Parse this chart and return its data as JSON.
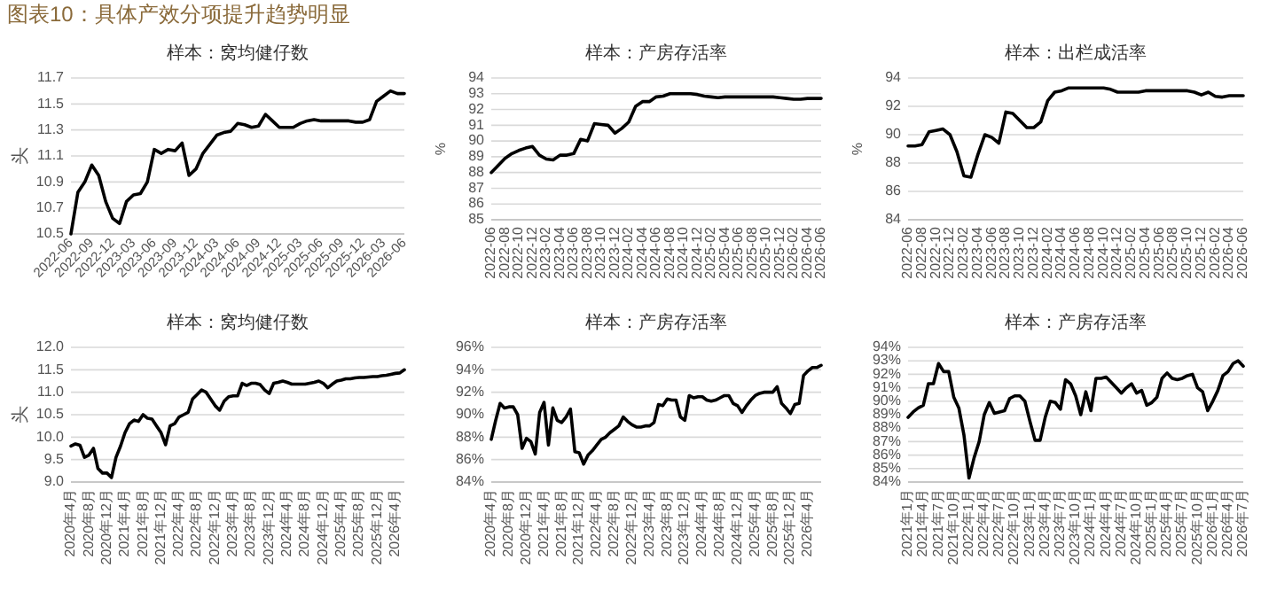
{
  "chart_data": [
    {
      "type": "line",
      "title": "样本：窝均健仔数",
      "ylabel": "头",
      "annotations": [
        "图表10：具体产效分项提升趋势明显"
      ],
      "grid": "y",
      "ylim": [
        10.5,
        11.7
      ],
      "yticks": [
        10.5,
        10.7,
        10.9,
        11.1,
        11.3,
        11.5,
        11.7
      ],
      "xlim": [
        "2022-06",
        "2026-06"
      ],
      "xticks": [
        {
          "value": "2022-06",
          "label": "2022-06"
        },
        {
          "value": "2022-09",
          "label": "2022-09"
        },
        {
          "value": "2022-12",
          "label": "2022-12"
        },
        {
          "value": "2023-03",
          "label": "2023-03"
        },
        {
          "value": "2023-06",
          "label": "2023-06"
        },
        {
          "value": "2023-09",
          "label": "2023-09"
        },
        {
          "value": "2023-12",
          "label": "2023-12"
        },
        {
          "value": "2024-03",
          "label": "2024-03"
        },
        {
          "value": "2024-06",
          "label": "2024-06"
        },
        {
          "value": "2024-09",
          "label": "2024-09"
        },
        {
          "value": "2024-12",
          "label": "2024-12"
        },
        {
          "value": "2025-03",
          "label": "2025-03"
        },
        {
          "value": "2025-06",
          "label": "2025-06"
        },
        {
          "value": "2025-09",
          "label": "2025-09"
        },
        {
          "value": "2025-12",
          "label": "2025-12"
        },
        {
          "value": "2026-03",
          "label": "2026-03"
        },
        {
          "value": "2026-06",
          "label": "2026-06"
        }
      ],
      "x": [
        "2022-06",
        "2022-07",
        "2022-08",
        "2022-09",
        "2022-10",
        "2022-11",
        "2022-12",
        "2023-01",
        "2023-02",
        "2023-03",
        "2023-04",
        "2023-05",
        "2023-06",
        "2023-07",
        "2023-08",
        "2023-09",
        "2023-10",
        "2023-11",
        "2023-12",
        "2024-01",
        "2024-02",
        "2024-03",
        "2024-04",
        "2024-05",
        "2024-06",
        "2024-07",
        "2024-08",
        "2024-09",
        "2024-10",
        "2024-11",
        "2024-12",
        "2025-01",
        "2025-02",
        "2025-03",
        "2025-04",
        "2025-05",
        "2025-06",
        "2025-07",
        "2025-08",
        "2025-09",
        "2025-10",
        "2025-11",
        "2025-12",
        "2026-01",
        "2026-02",
        "2026-03",
        "2026-04",
        "2026-05",
        "2026-06"
      ],
      "series": [
        {
          "color": "#000000",
          "values": [
            10.5,
            10.82,
            10.9,
            11.03,
            10.95,
            10.75,
            10.62,
            10.58,
            10.75,
            10.8,
            10.81,
            10.9,
            11.15,
            11.12,
            11.15,
            11.14,
            11.2,
            10.95,
            11.0,
            11.12,
            11.19,
            11.26,
            11.28,
            11.29,
            11.35,
            11.34,
            11.32,
            11.33,
            11.42,
            11.37,
            11.32,
            11.32,
            11.32,
            11.35,
            11.37,
            11.38,
            11.37,
            11.37,
            11.37,
            11.37,
            11.37,
            11.36,
            11.36,
            11.38,
            11.52,
            11.56,
            11.6,
            11.58,
            11.58
          ]
        }
      ]
    },
    {
      "type": "line",
      "title": "样本：产房存活率",
      "ylabel": "%",
      "grid": "y",
      "ylim": [
        85,
        94
      ],
      "yticks": [
        85,
        86,
        87,
        88,
        89,
        90,
        91,
        92,
        93,
        94
      ],
      "xlim": [
        "2022-06",
        "2026-06"
      ],
      "xticks": [
        {
          "value": "2022-06",
          "label": "2022-06"
        },
        {
          "value": "2022-08",
          "label": "2022-08"
        },
        {
          "value": "2022-10",
          "label": "2022-10"
        },
        {
          "value": "2022-12",
          "label": "2022-12"
        },
        {
          "value": "2023-02",
          "label": "2023-02"
        },
        {
          "value": "2023-04",
          "label": "2023-04"
        },
        {
          "value": "2023-06",
          "label": "2023-06"
        },
        {
          "value": "2023-08",
          "label": "2023-08"
        },
        {
          "value": "2023-10",
          "label": "2023-10"
        },
        {
          "value": "2023-12",
          "label": "2023-12"
        },
        {
          "value": "2024-02",
          "label": "2024-02"
        },
        {
          "value": "2024-04",
          "label": "2024-04"
        },
        {
          "value": "2024-06",
          "label": "2024-06"
        },
        {
          "value": "2024-08",
          "label": "2024-08"
        },
        {
          "value": "2024-10",
          "label": "2024-10"
        },
        {
          "value": "2024-12",
          "label": "2024-12"
        },
        {
          "value": "2025-02",
          "label": "2025-02"
        },
        {
          "value": "2025-04",
          "label": "2025-04"
        },
        {
          "value": "2025-06",
          "label": "2025-06"
        },
        {
          "value": "2025-08",
          "label": "2025-08"
        },
        {
          "value": "2025-10",
          "label": "2025-10"
        },
        {
          "value": "2025-12",
          "label": "2025-12"
        },
        {
          "value": "2026-02",
          "label": "2026-02"
        },
        {
          "value": "2026-04",
          "label": "2026-04"
        },
        {
          "value": "2026-06",
          "label": "2026-06"
        }
      ],
      "x": [
        "2022-06",
        "2022-07",
        "2022-08",
        "2022-09",
        "2022-10",
        "2022-11",
        "2022-12",
        "2023-01",
        "2023-02",
        "2023-03",
        "2023-04",
        "2023-05",
        "2023-06",
        "2023-07",
        "2023-08",
        "2023-09",
        "2023-10",
        "2023-11",
        "2023-12",
        "2024-01",
        "2024-02",
        "2024-03",
        "2024-04",
        "2024-05",
        "2024-06",
        "2024-07",
        "2024-08",
        "2024-09",
        "2024-10",
        "2024-11",
        "2024-12",
        "2025-01",
        "2025-02",
        "2025-03",
        "2025-04",
        "2025-05",
        "2025-06",
        "2025-07",
        "2025-08",
        "2025-09",
        "2025-10",
        "2025-11",
        "2025-12",
        "2026-01",
        "2026-02",
        "2026-03",
        "2026-04",
        "2026-05",
        "2026-06"
      ],
      "series": [
        {
          "color": "#000000",
          "values": [
            88.0,
            88.45,
            88.9,
            89.2,
            89.4,
            89.55,
            89.65,
            89.1,
            88.85,
            88.8,
            89.1,
            89.1,
            89.2,
            90.1,
            90.0,
            91.1,
            91.05,
            91.0,
            90.5,
            90.8,
            91.2,
            92.2,
            92.5,
            92.5,
            92.8,
            92.85,
            93.0,
            93.0,
            93.0,
            93.0,
            92.95,
            92.85,
            92.8,
            92.75,
            92.8,
            92.8,
            92.8,
            92.8,
            92.8,
            92.8,
            92.8,
            92.8,
            92.75,
            92.7,
            92.65,
            92.65,
            92.7,
            92.7,
            92.7
          ]
        }
      ]
    },
    {
      "type": "line",
      "title": "样本：出栏成活率",
      "ylabel": "%",
      "grid": "y",
      "ylim": [
        84,
        94
      ],
      "yticks": [
        84,
        86,
        88,
        90,
        92,
        94
      ],
      "xlim": [
        "2022-06",
        "2026-06"
      ],
      "xticks": [
        {
          "value": "2022-06",
          "label": "2022-06"
        },
        {
          "value": "2022-08",
          "label": "2022-08"
        },
        {
          "value": "2022-10",
          "label": "2022-10"
        },
        {
          "value": "2022-12",
          "label": "2022-12"
        },
        {
          "value": "2023-02",
          "label": "2023-02"
        },
        {
          "value": "2023-04",
          "label": "2023-04"
        },
        {
          "value": "2023-06",
          "label": "2023-06"
        },
        {
          "value": "2023-08",
          "label": "2023-08"
        },
        {
          "value": "2023-10",
          "label": "2023-10"
        },
        {
          "value": "2023-12",
          "label": "2023-12"
        },
        {
          "value": "2024-02",
          "label": "2024-02"
        },
        {
          "value": "2024-04",
          "label": "2024-04"
        },
        {
          "value": "2024-06",
          "label": "2024-06"
        },
        {
          "value": "2024-08",
          "label": "2024-08"
        },
        {
          "value": "2024-10",
          "label": "2024-10"
        },
        {
          "value": "2024-12",
          "label": "2024-12"
        },
        {
          "value": "2025-02",
          "label": "2025-02"
        },
        {
          "value": "2025-04",
          "label": "2025-04"
        },
        {
          "value": "2025-06",
          "label": "2025-06"
        },
        {
          "value": "2025-08",
          "label": "2025-08"
        },
        {
          "value": "2025-10",
          "label": "2025-10"
        },
        {
          "value": "2025-12",
          "label": "2025-12"
        },
        {
          "value": "2026-02",
          "label": "2026-02"
        },
        {
          "value": "2026-04",
          "label": "2026-04"
        },
        {
          "value": "2026-06",
          "label": "2026-06"
        }
      ],
      "x": [
        "2022-06",
        "2022-07",
        "2022-08",
        "2022-09",
        "2022-10",
        "2022-11",
        "2022-12",
        "2023-01",
        "2023-02",
        "2023-03",
        "2023-04",
        "2023-05",
        "2023-06",
        "2023-07",
        "2023-08",
        "2023-09",
        "2023-10",
        "2023-11",
        "2023-12",
        "2024-01",
        "2024-02",
        "2024-03",
        "2024-04",
        "2024-05",
        "2024-06",
        "2024-07",
        "2024-08",
        "2024-09",
        "2024-10",
        "2024-11",
        "2024-12",
        "2025-01",
        "2025-02",
        "2025-03",
        "2025-04",
        "2025-05",
        "2025-06",
        "2025-07",
        "2025-08",
        "2025-09",
        "2025-10",
        "2025-11",
        "2025-12",
        "2026-01",
        "2026-02",
        "2026-03",
        "2026-04",
        "2026-05",
        "2026-06"
      ],
      "series": [
        {
          "color": "#000000",
          "values": [
            89.2,
            89.2,
            89.3,
            90.2,
            90.3,
            90.4,
            90.0,
            88.8,
            87.1,
            87.0,
            88.6,
            90.0,
            89.8,
            89.4,
            91.6,
            91.5,
            91.0,
            90.5,
            90.5,
            90.9,
            92.4,
            93.0,
            93.1,
            93.3,
            93.3,
            93.3,
            93.3,
            93.3,
            93.3,
            93.2,
            93.0,
            93.0,
            93.0,
            93.0,
            93.1,
            93.1,
            93.1,
            93.1,
            93.1,
            93.1,
            93.1,
            93.0,
            92.8,
            93.0,
            92.7,
            92.65,
            92.75,
            92.75,
            92.75
          ]
        }
      ]
    },
    {
      "type": "line",
      "title": "样本：窝均健仔数",
      "ylabel": "头",
      "grid": "y",
      "ylim": [
        9,
        12
      ],
      "yticks": [
        {
          "value": 9,
          "label": "9.0"
        },
        9.5,
        {
          "value": 10,
          "label": "10.0"
        },
        10.5,
        {
          "value": 11,
          "label": "11.0"
        },
        11.5,
        {
          "value": 12,
          "label": "12.0"
        }
      ],
      "xlim": [
        "2020-04",
        "2026-06"
      ],
      "xticks": [
        {
          "value": "2020-04",
          "label": "2020年4月"
        },
        {
          "value": "2020-08",
          "label": "2020年8月"
        },
        {
          "value": "2020-12",
          "label": "2020年12月"
        },
        {
          "value": "2021-04",
          "label": "2021年4月"
        },
        {
          "value": "2021-08",
          "label": "2021年8月"
        },
        {
          "value": "2021-12",
          "label": "2021年12月"
        },
        {
          "value": "2022-04",
          "label": "2022年4月"
        },
        {
          "value": "2022-08",
          "label": "2022年8月"
        },
        {
          "value": "2022-12",
          "label": "2022年12月"
        },
        {
          "value": "2023-04",
          "label": "2023年4月"
        },
        {
          "value": "2023-08",
          "label": "2023年8月"
        },
        {
          "value": "2023-12",
          "label": "2023年12月"
        },
        {
          "value": "2024-04",
          "label": "2024年4月"
        },
        {
          "value": "2024-08",
          "label": "2024年8月"
        },
        {
          "value": "2024-12",
          "label": "2024年12月"
        },
        {
          "value": "2025-04",
          "label": "2025年4月"
        },
        {
          "value": "2025-08",
          "label": "2025年8月"
        },
        {
          "value": "2025-12",
          "label": "2025年12月"
        },
        {
          "value": "2026-04",
          "label": "2026年4月"
        }
      ],
      "x": [
        "2020-04",
        "2020-05",
        "2020-06",
        "2020-07",
        "2020-08",
        "2020-09",
        "2020-10",
        "2020-11",
        "2020-12",
        "2021-01",
        "2021-02",
        "2021-03",
        "2021-04",
        "2021-05",
        "2021-06",
        "2021-07",
        "2021-08",
        "2021-09",
        "2021-10",
        "2021-11",
        "2021-12",
        "2022-01",
        "2022-02",
        "2022-03",
        "2022-04",
        "2022-05",
        "2022-06",
        "2022-07",
        "2022-08",
        "2022-09",
        "2022-10",
        "2022-11",
        "2022-12",
        "2023-01",
        "2023-02",
        "2023-03",
        "2023-04",
        "2023-05",
        "2023-06",
        "2023-07",
        "2023-08",
        "2023-09",
        "2023-10",
        "2023-11",
        "2023-12",
        "2024-01",
        "2024-02",
        "2024-03",
        "2024-04",
        "2024-05",
        "2024-06",
        "2024-07",
        "2024-08",
        "2024-09",
        "2024-10",
        "2024-11",
        "2024-12",
        "2025-01",
        "2025-02",
        "2025-03",
        "2025-04",
        "2025-05",
        "2025-06",
        "2025-07",
        "2025-08",
        "2025-09",
        "2025-10",
        "2025-11",
        "2025-12",
        "2026-01",
        "2026-02",
        "2026-03",
        "2026-04",
        "2026-05",
        "2026-06"
      ],
      "series": [
        {
          "color": "#000000",
          "values": [
            9.8,
            9.85,
            9.82,
            9.55,
            9.6,
            9.75,
            9.3,
            9.2,
            9.2,
            9.1,
            9.55,
            9.8,
            10.1,
            10.3,
            10.38,
            10.35,
            10.5,
            10.42,
            10.4,
            10.25,
            10.1,
            9.83,
            10.25,
            10.3,
            10.45,
            10.5,
            10.55,
            10.85,
            10.95,
            11.05,
            11.0,
            10.85,
            10.7,
            10.6,
            10.8,
            10.9,
            10.92,
            10.92,
            11.2,
            11.15,
            11.2,
            11.2,
            11.17,
            11.05,
            10.97,
            11.2,
            11.22,
            11.25,
            11.22,
            11.18,
            11.18,
            11.18,
            11.18,
            11.2,
            11.22,
            11.25,
            11.2,
            11.1,
            11.18,
            11.25,
            11.27,
            11.3,
            11.3,
            11.32,
            11.33,
            11.33,
            11.34,
            11.35,
            11.35,
            11.37,
            11.38,
            11.4,
            11.42,
            11.43,
            11.5
          ]
        }
      ]
    },
    {
      "type": "line",
      "title": "样本：产房存活率",
      "grid": "y",
      "ylim": [
        84,
        96
      ],
      "yticks": [
        {
          "value": 84,
          "label": "84%"
        },
        {
          "value": 86,
          "label": "86%"
        },
        {
          "value": 88,
          "label": "88%"
        },
        {
          "value": 90,
          "label": "90%"
        },
        {
          "value": 92,
          "label": "92%"
        },
        {
          "value": 94,
          "label": "94%"
        },
        {
          "value": 96,
          "label": "96%"
        }
      ],
      "xlim": [
        "2020-04",
        "2026-07"
      ],
      "xticks": [
        {
          "value": "2020-04",
          "label": "2020年4月"
        },
        {
          "value": "2020-08",
          "label": "2020年8月"
        },
        {
          "value": "2020-12",
          "label": "2020年12月"
        },
        {
          "value": "2021-04",
          "label": "2021年4月"
        },
        {
          "value": "2021-08",
          "label": "2021年8月"
        },
        {
          "value": "2021-12",
          "label": "2021年12月"
        },
        {
          "value": "2022-04",
          "label": "2022年4月"
        },
        {
          "value": "2022-08",
          "label": "2022年8月"
        },
        {
          "value": "2022-12",
          "label": "2022年12月"
        },
        {
          "value": "2023-04",
          "label": "2023年4月"
        },
        {
          "value": "2023-08",
          "label": "2023年8月"
        },
        {
          "value": "2023-12",
          "label": "2023年12月"
        },
        {
          "value": "2024-04",
          "label": "2024年4月"
        },
        {
          "value": "2024-08",
          "label": "2024年8月"
        },
        {
          "value": "2024-12",
          "label": "2024年12月"
        },
        {
          "value": "2025-04",
          "label": "2025年4月"
        },
        {
          "value": "2025-08",
          "label": "2025年8月"
        },
        {
          "value": "2025-12",
          "label": "2025年12月"
        },
        {
          "value": "2026-04",
          "label": "2026年4月"
        }
      ],
      "x": [
        "2020-04",
        "2020-05",
        "2020-06",
        "2020-07",
        "2020-08",
        "2020-09",
        "2020-10",
        "2020-11",
        "2020-12",
        "2021-01",
        "2021-02",
        "2021-03",
        "2021-04",
        "2021-05",
        "2021-06",
        "2021-07",
        "2021-08",
        "2021-09",
        "2021-10",
        "2021-11",
        "2021-12",
        "2022-01",
        "2022-02",
        "2022-03",
        "2022-04",
        "2022-05",
        "2022-06",
        "2022-07",
        "2022-08",
        "2022-09",
        "2022-10",
        "2022-11",
        "2022-12",
        "2023-01",
        "2023-02",
        "2023-03",
        "2023-04",
        "2023-05",
        "2023-06",
        "2023-07",
        "2023-08",
        "2023-09",
        "2023-10",
        "2023-11",
        "2023-12",
        "2024-01",
        "2024-02",
        "2024-03",
        "2024-04",
        "2024-05",
        "2024-06",
        "2024-07",
        "2024-08",
        "2024-09",
        "2024-10",
        "2024-11",
        "2024-12",
        "2025-01",
        "2025-02",
        "2025-03",
        "2025-04",
        "2025-05",
        "2025-06",
        "2025-07",
        "2025-08",
        "2025-09",
        "2025-10",
        "2025-11",
        "2025-12",
        "2026-01",
        "2026-02",
        "2026-03",
        "2026-04",
        "2026-05",
        "2026-06",
        "2026-07"
      ],
      "series": [
        {
          "color": "#000000",
          "values": [
            87.8,
            89.5,
            91.0,
            90.6,
            90.7,
            90.7,
            90.0,
            87.0,
            87.9,
            87.6,
            86.5,
            90.2,
            91.1,
            87.3,
            90.6,
            89.5,
            89.3,
            89.8,
            90.5,
            86.7,
            86.6,
            85.6,
            86.4,
            86.8,
            87.3,
            87.8,
            88.0,
            88.4,
            88.7,
            89.0,
            89.8,
            89.4,
            89.1,
            88.9,
            88.9,
            89.0,
            89.0,
            89.3,
            90.9,
            90.8,
            91.4,
            91.3,
            91.3,
            89.8,
            89.5,
            91.7,
            91.5,
            91.6,
            91.6,
            91.3,
            91.2,
            91.3,
            91.5,
            91.7,
            91.7,
            91.0,
            90.8,
            90.2,
            90.8,
            91.3,
            91.7,
            91.9,
            92.0,
            92.0,
            92.0,
            92.5,
            91.0,
            90.6,
            90.1,
            90.9,
            91.0,
            93.5,
            93.9,
            94.2,
            94.2,
            94.4
          ]
        }
      ]
    },
    {
      "type": "line",
      "title": "样本：产房存活率",
      "grid": "y",
      "ylim": [
        84,
        94
      ],
      "yticks": [
        {
          "value": 84,
          "label": "84%"
        },
        {
          "value": 85,
          "label": "85%"
        },
        {
          "value": 86,
          "label": "86%"
        },
        {
          "value": 87,
          "label": "87%"
        },
        {
          "value": 88,
          "label": "88%"
        },
        {
          "value": 89,
          "label": "89%"
        },
        {
          "value": 90,
          "label": "90%"
        },
        {
          "value": 91,
          "label": "91%"
        },
        {
          "value": 92,
          "label": "92%"
        },
        {
          "value": 93,
          "label": "93%"
        },
        {
          "value": 94,
          "label": "94%"
        }
      ],
      "xlim": [
        "2021-01",
        "2026-07"
      ],
      "xticks": [
        {
          "value": "2021-01",
          "label": "2021年1月"
        },
        {
          "value": "2021-04",
          "label": "2021年4月"
        },
        {
          "value": "2021-07",
          "label": "2021年7月"
        },
        {
          "value": "2021-10",
          "label": "2021年10月"
        },
        {
          "value": "2022-01",
          "label": "2022年1月"
        },
        {
          "value": "2022-04",
          "label": "2022年4月"
        },
        {
          "value": "2022-07",
          "label": "2022年7月"
        },
        {
          "value": "2022-10",
          "label": "2022年10月"
        },
        {
          "value": "2023-01",
          "label": "2023年1月"
        },
        {
          "value": "2023-04",
          "label": "2023年4月"
        },
        {
          "value": "2023-07",
          "label": "2023年7月"
        },
        {
          "value": "2023-10",
          "label": "2023年10月"
        },
        {
          "value": "2024-01",
          "label": "2024年1月"
        },
        {
          "value": "2024-04",
          "label": "2024年4月"
        },
        {
          "value": "2024-07",
          "label": "2024年7月"
        },
        {
          "value": "2024-10",
          "label": "2024年10月"
        },
        {
          "value": "2025-01",
          "label": "2025年1月"
        },
        {
          "value": "2025-04",
          "label": "2025年4月"
        },
        {
          "value": "2025-07",
          "label": "2025年7月"
        },
        {
          "value": "2025-10",
          "label": "2025年10月"
        },
        {
          "value": "2026-01",
          "label": "2026年1月"
        },
        {
          "value": "2026-04",
          "label": "2026年4月"
        },
        {
          "value": "2026-07",
          "label": "2026年7月"
        }
      ],
      "x": [
        "2021-01",
        "2021-02",
        "2021-03",
        "2021-04",
        "2021-05",
        "2021-06",
        "2021-07",
        "2021-08",
        "2021-09",
        "2021-10",
        "2021-11",
        "2021-12",
        "2022-01",
        "2022-02",
        "2022-03",
        "2022-04",
        "2022-05",
        "2022-06",
        "2022-07",
        "2022-08",
        "2022-09",
        "2022-10",
        "2022-11",
        "2022-12",
        "2023-01",
        "2023-02",
        "2023-03",
        "2023-04",
        "2023-05",
        "2023-06",
        "2023-07",
        "2023-08",
        "2023-09",
        "2023-10",
        "2023-11",
        "2023-12",
        "2024-01",
        "2024-02",
        "2024-03",
        "2024-04",
        "2024-05",
        "2024-06",
        "2024-07",
        "2024-08",
        "2024-09",
        "2024-10",
        "2024-11",
        "2024-12",
        "2025-01",
        "2025-02",
        "2025-03",
        "2025-04",
        "2025-05",
        "2025-06",
        "2025-07",
        "2025-08",
        "2025-09",
        "2025-10",
        "2025-11",
        "2025-12",
        "2026-01",
        "2026-02",
        "2026-03",
        "2026-04",
        "2026-05",
        "2026-06",
        "2026-07"
      ],
      "series": [
        {
          "color": "#000000",
          "values": [
            88.8,
            89.2,
            89.5,
            89.7,
            91.3,
            91.3,
            92.8,
            92.2,
            92.2,
            90.3,
            89.5,
            87.5,
            84.3,
            85.8,
            87.0,
            89.0,
            89.9,
            89.1,
            89.2,
            89.3,
            90.2,
            90.4,
            90.4,
            90.0,
            88.5,
            87.1,
            87.1,
            88.8,
            90.0,
            89.9,
            89.4,
            91.6,
            91.3,
            90.4,
            89.0,
            90.7,
            89.3,
            91.7,
            91.7,
            91.8,
            91.4,
            91.0,
            90.6,
            91.0,
            91.3,
            90.6,
            90.8,
            89.7,
            89.9,
            90.3,
            91.7,
            92.1,
            91.7,
            91.6,
            91.7,
            91.9,
            92.0,
            91.0,
            90.7,
            89.3,
            90.0,
            90.8,
            91.9,
            92.2,
            92.8,
            93.0,
            92.6
          ]
        }
      ]
    }
  ]
}
